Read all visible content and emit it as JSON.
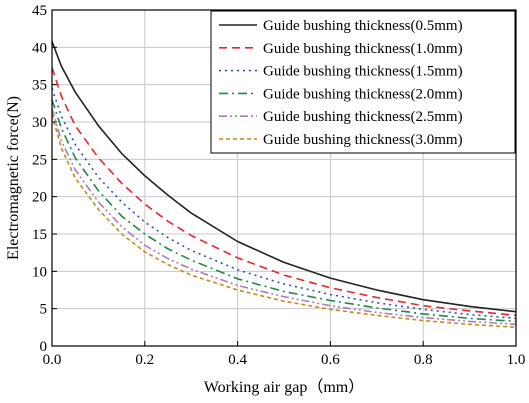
{
  "chart_data": {
    "type": "line",
    "xlabel": "Working air gap（mm）",
    "ylabel": "Electromagnetic force(N)",
    "xlim": [
      0,
      1.0
    ],
    "ylim": [
      0,
      45
    ],
    "x_ticks": [
      "0.0",
      "0.2",
      "0.4",
      "0.6",
      "0.8",
      "1.0"
    ],
    "y_ticks": [
      "0",
      "5",
      "10",
      "15",
      "20",
      "25",
      "30",
      "35",
      "40",
      "45"
    ],
    "grid": true,
    "legend_position": "top-right",
    "x": [
      0,
      0.02,
      0.05,
      0.1,
      0.15,
      0.2,
      0.25,
      0.3,
      0.4,
      0.5,
      0.6,
      0.7,
      0.8,
      0.9,
      1.0
    ],
    "series": [
      {
        "name": "Guide bushing thickness(0.5mm)",
        "color": "#222222",
        "dash": "solid",
        "values": [
          40.8,
          37.5,
          34.0,
          29.5,
          25.8,
          22.8,
          20.2,
          17.8,
          14.0,
          11.2,
          9.1,
          7.5,
          6.2,
          5.3,
          4.6
        ]
      },
      {
        "name": "Guide bushing thickness(1.0mm)",
        "color": "#e8262d",
        "dash": "dashed",
        "values": [
          37.3,
          33.5,
          29.5,
          25.2,
          21.8,
          19.0,
          16.7,
          14.8,
          11.8,
          9.5,
          7.8,
          6.5,
          5.4,
          4.7,
          4.1
        ]
      },
      {
        "name": "Guide bushing thickness(1.5mm)",
        "color": "#2a4fb8",
        "dash": "dotted",
        "values": [
          34.5,
          30.8,
          27.0,
          22.6,
          19.3,
          16.6,
          14.5,
          12.8,
          10.2,
          8.3,
          6.9,
          5.8,
          4.9,
          4.2,
          3.7
        ]
      },
      {
        "name": "Guide bushing thickness(2.0mm)",
        "color": "#1e8a45",
        "dash": "dashdot",
        "values": [
          33.0,
          29.2,
          25.2,
          20.8,
          17.4,
          15.0,
          13.0,
          11.5,
          9.0,
          7.3,
          6.1,
          5.1,
          4.3,
          3.7,
          3.3
        ]
      },
      {
        "name": "Guide bushing thickness(2.5mm)",
        "color": "#b07ab8",
        "dash": "dashdotdot",
        "values": [
          31.8,
          27.5,
          23.6,
          19.3,
          16.0,
          13.5,
          11.7,
          10.3,
          8.1,
          6.6,
          5.4,
          4.5,
          3.8,
          3.3,
          2.9
        ]
      },
      {
        "name": "Guide bushing thickness(3.0mm)",
        "color": "#c88a1a",
        "dash": "shortdash",
        "values": [
          31.0,
          26.5,
          22.5,
          18.3,
          15.0,
          12.6,
          10.9,
          9.5,
          7.5,
          6.0,
          4.9,
          4.1,
          3.4,
          2.9,
          2.5
        ]
      }
    ]
  }
}
